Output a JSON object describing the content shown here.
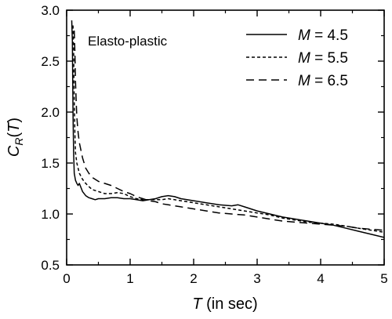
{
  "chart_data": {
    "type": "line",
    "annotation": "Elasto-plastic",
    "xlabel": {
      "var": "T",
      "rest": " (in sec)"
    },
    "ylabel": {
      "main": "C",
      "sub": "R",
      "open": "(",
      "arg": "T",
      "close": ")"
    },
    "xlim": [
      0,
      5
    ],
    "ylim": [
      0.5,
      3.0
    ],
    "xticks": [
      {
        "value": 0,
        "label": "0"
      },
      {
        "value": 1,
        "label": "1"
      },
      {
        "value": 2,
        "label": "2"
      },
      {
        "value": 3,
        "label": "3"
      },
      {
        "value": 4,
        "label": "4"
      },
      {
        "value": 5,
        "label": "5"
      }
    ],
    "yticks": [
      {
        "value": 0.5,
        "label": "0.5"
      },
      {
        "value": 1.0,
        "label": "1.0"
      },
      {
        "value": 1.5,
        "label": "1.5"
      },
      {
        "value": 2.0,
        "label": "2.0"
      },
      {
        "value": 2.5,
        "label": "2.5"
      },
      {
        "value": 3.0,
        "label": "3.0"
      }
    ],
    "grid": false,
    "legend_position": "top-right",
    "series": [
      {
        "name": "4.5",
        "legend_var": "M",
        "legend_op": " = ",
        "dash": "solid",
        "x": [
          0.08,
          0.09,
          0.1,
          0.11,
          0.12,
          0.14,
          0.16,
          0.18,
          0.2,
          0.25,
          0.3,
          0.35,
          0.4,
          0.45,
          0.5,
          0.6,
          0.7,
          0.8,
          0.9,
          1.0,
          1.1,
          1.2,
          1.3,
          1.4,
          1.5,
          1.6,
          1.7,
          1.8,
          2.0,
          2.2,
          2.4,
          2.6,
          2.7,
          2.8,
          2.9,
          3.0,
          3.2,
          3.4,
          3.6,
          3.8,
          4.0,
          4.2,
          4.4,
          4.6,
          4.8,
          5.0
        ],
        "y": [
          2.9,
          2.7,
          2.0,
          1.6,
          1.4,
          1.33,
          1.3,
          1.28,
          1.3,
          1.22,
          1.18,
          1.16,
          1.15,
          1.14,
          1.15,
          1.15,
          1.16,
          1.16,
          1.15,
          1.15,
          1.14,
          1.13,
          1.14,
          1.15,
          1.17,
          1.18,
          1.17,
          1.15,
          1.13,
          1.11,
          1.09,
          1.08,
          1.09,
          1.07,
          1.05,
          1.03,
          1.0,
          0.97,
          0.95,
          0.93,
          0.91,
          0.89,
          0.86,
          0.83,
          0.8,
          0.77
        ]
      },
      {
        "name": "5.5",
        "legend_var": "M",
        "legend_op": " = ",
        "dash": "short",
        "x": [
          0.1,
          0.11,
          0.12,
          0.13,
          0.14,
          0.16,
          0.18,
          0.2,
          0.25,
          0.3,
          0.35,
          0.4,
          0.5,
          0.6,
          0.7,
          0.8,
          0.9,
          1.0,
          1.1,
          1.2,
          1.3,
          1.4,
          1.5,
          1.6,
          1.7,
          1.8,
          2.0,
          2.2,
          2.4,
          2.6,
          2.8,
          3.0,
          3.2,
          3.4,
          3.6,
          3.8,
          4.0,
          4.2,
          4.4,
          4.6,
          4.8,
          5.0
        ],
        "y": [
          2.85,
          2.6,
          2.1,
          1.8,
          1.6,
          1.5,
          1.45,
          1.4,
          1.34,
          1.3,
          1.27,
          1.24,
          1.22,
          1.2,
          1.2,
          1.21,
          1.2,
          1.17,
          1.15,
          1.14,
          1.14,
          1.14,
          1.14,
          1.15,
          1.14,
          1.13,
          1.11,
          1.09,
          1.07,
          1.05,
          1.03,
          1.01,
          0.99,
          0.96,
          0.94,
          0.92,
          0.91,
          0.9,
          0.88,
          0.86,
          0.84,
          0.82
        ]
      },
      {
        "name": "6.5",
        "legend_var": "M",
        "legend_op": " = ",
        "dash": "long",
        "x": [
          0.12,
          0.13,
          0.14,
          0.15,
          0.16,
          0.18,
          0.2,
          0.25,
          0.3,
          0.35,
          0.4,
          0.5,
          0.6,
          0.7,
          0.8,
          0.9,
          1.0,
          1.1,
          1.2,
          1.3,
          1.4,
          1.5,
          1.6,
          1.7,
          1.8,
          2.0,
          2.2,
          2.4,
          2.6,
          2.8,
          3.0,
          3.2,
          3.4,
          3.6,
          3.8,
          4.0,
          4.2,
          4.4,
          4.6,
          4.8,
          5.0
        ],
        "y": [
          2.8,
          2.6,
          2.3,
          2.1,
          1.95,
          1.8,
          1.7,
          1.55,
          1.45,
          1.4,
          1.36,
          1.32,
          1.3,
          1.28,
          1.25,
          1.22,
          1.2,
          1.17,
          1.15,
          1.13,
          1.12,
          1.1,
          1.09,
          1.08,
          1.07,
          1.05,
          1.03,
          1.01,
          1.0,
          0.99,
          0.97,
          0.95,
          0.93,
          0.92,
          0.91,
          0.9,
          0.89,
          0.88,
          0.86,
          0.85,
          0.84
        ]
      }
    ]
  }
}
